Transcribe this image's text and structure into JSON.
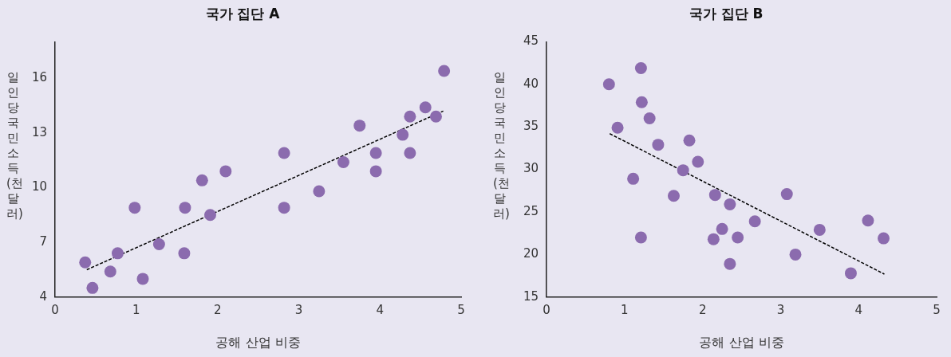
{
  "chart_data": [
    {
      "type": "scatter",
      "title": "국가 집단 A",
      "xlabel": "공해 산업 비중",
      "ylabel": "일인당 국민소득 (천 달러)",
      "xlim": [
        0,
        5
      ],
      "xticks": [
        0,
        1,
        2,
        3,
        4,
        5
      ],
      "ylim": [
        4,
        18
      ],
      "yticks": [
        4,
        7,
        10,
        13,
        16
      ],
      "grid": false,
      "legend": false,
      "marker": "circle",
      "series": [
        {
          "color": "#8b6bae",
          "x": [
            0.37,
            0.46,
            0.68,
            0.77,
            0.98,
            1.08,
            1.28,
            1.59,
            1.6,
            1.81,
            1.91,
            2.1,
            2.82,
            2.82,
            3.25,
            3.55,
            3.75,
            3.95,
            3.95,
            4.28,
            4.37,
            4.37,
            4.56,
            4.69,
            4.79
          ],
          "values": [
            5.9,
            4.5,
            5.4,
            6.4,
            8.9,
            5.0,
            6.9,
            6.4,
            8.9,
            10.4,
            8.5,
            10.9,
            11.9,
            8.9,
            9.8,
            11.4,
            13.4,
            11.9,
            10.9,
            12.9,
            13.9,
            11.9,
            14.4,
            13.9,
            16.4
          ]
        },
        {
          "type": "line",
          "color": "#000000",
          "line_style": "dashed",
          "marker": "none",
          "x": [
            0.39,
            4.78
          ],
          "values": [
            5.5,
            14.2
          ]
        }
      ]
    },
    {
      "type": "scatter",
      "title": "국가 집단 B",
      "xlabel": "공해 산업 비중",
      "ylabel": "일인당 국민소득 (천 달러)",
      "xlim": [
        0,
        5
      ],
      "xticks": [
        0,
        1,
        2,
        3,
        4,
        5
      ],
      "ylim": [
        15,
        45
      ],
      "yticks": [
        15,
        20,
        25,
        30,
        35,
        40,
        45
      ],
      "grid": false,
      "legend": false,
      "marker": "circle",
      "series": [
        {
          "color": "#8b6bae",
          "x": [
            0.8,
            1.21,
            1.22,
            1.32,
            0.91,
            1.43,
            1.83,
            1.94,
            1.75,
            1.11,
            1.63,
            2.16,
            2.35,
            3.08,
            2.67,
            2.25,
            2.14,
            2.45,
            1.21,
            3.5,
            4.12,
            4.32,
            3.19,
            2.35,
            3.9
          ],
          "values": [
            40.0,
            41.9,
            37.9,
            36.0,
            34.9,
            32.9,
            33.4,
            30.9,
            29.9,
            28.9,
            26.9,
            27.0,
            25.9,
            27.1,
            23.9,
            23.0,
            21.8,
            22.0,
            22.0,
            22.9,
            24.0,
            21.9,
            20.0,
            18.9,
            17.8
          ]
        },
        {
          "type": "line",
          "color": "#000000",
          "line_style": "dashed",
          "marker": "none",
          "x": [
            0.81,
            4.33
          ],
          "values": [
            34.2,
            17.7
          ]
        }
      ]
    }
  ]
}
